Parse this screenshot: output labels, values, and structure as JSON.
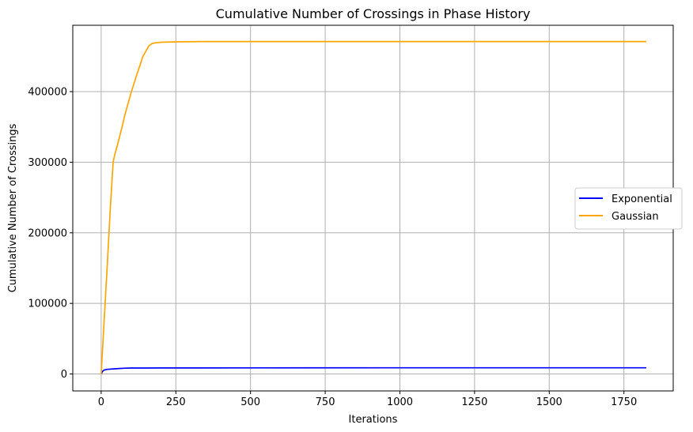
{
  "chart_data": {
    "type": "line",
    "title": "Cumulative Number of Crossings in Phase History",
    "xlabel": "Iterations",
    "ylabel": "Cumulative Number of Crossings",
    "xlim": [
      -95,
      1915
    ],
    "ylim": [
      -24000,
      494000
    ],
    "xticks": [
      0,
      250,
      500,
      750,
      1000,
      1250,
      1500,
      1750
    ],
    "yticks": [
      0,
      100000,
      200000,
      300000,
      400000
    ],
    "grid": true,
    "legend": "center-right",
    "series": [
      {
        "name": "Exponential",
        "color": "#0000ff",
        "x": [
          0,
          5,
          10,
          20,
          40,
          60,
          80,
          100,
          150,
          200,
          300,
          500,
          1000,
          1500,
          1825
        ],
        "y": [
          0,
          4000,
          5500,
          6500,
          7200,
          7800,
          8200,
          8400,
          8500,
          8600,
          8600,
          8700,
          8800,
          8800,
          8800
        ]
      },
      {
        "name": "Gaussian",
        "color": "#ffa500",
        "x": [
          0,
          10,
          20,
          30,
          40,
          45,
          55,
          70,
          80,
          100,
          120,
          140,
          160,
          170,
          180,
          200,
          250,
          350,
          500,
          1000,
          1500,
          1825
        ],
        "y": [
          0,
          75000,
          150000,
          230000,
          300000,
          310000,
          325000,
          350000,
          368000,
          398000,
          425000,
          450000,
          465000,
          468000,
          469000,
          470000,
          470500,
          471000,
          471000,
          471000,
          471000,
          471000
        ]
      }
    ]
  }
}
